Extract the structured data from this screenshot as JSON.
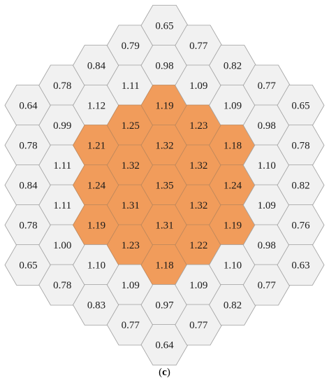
{
  "hot_color": "#f19c5b",
  "base_color": "#f1f1f1",
  "caption": {
    "open": "(",
    "letter": "c",
    "close": ")"
  },
  "columns": [
    {
      "col": -5,
      "cells": [
        [
          "0.64",
          false
        ],
        [
          "0.78",
          false
        ],
        [
          "0.84",
          false
        ],
        [
          "0.78",
          false
        ],
        [
          "0.65",
          false
        ]
      ]
    },
    {
      "col": -4,
      "cells": [
        [
          "0.78",
          false
        ],
        [
          "0.99",
          false
        ],
        [
          "1.11",
          false
        ],
        [
          "1.11",
          false
        ],
        [
          "1.00",
          false
        ],
        [
          "0.78",
          false
        ]
      ]
    },
    {
      "col": -3,
      "cells": [
        [
          "0.84",
          false
        ],
        [
          "1.12",
          false
        ],
        [
          "1.21",
          true
        ],
        [
          "1.24",
          true
        ],
        [
          "1.19",
          true
        ],
        [
          "1.10",
          false
        ],
        [
          "0.83",
          false
        ]
      ]
    },
    {
      "col": -2,
      "cells": [
        [
          "0.79",
          false
        ],
        [
          "1.11",
          false
        ],
        [
          "1.25",
          true
        ],
        [
          "1.32",
          true
        ],
        [
          "1.31",
          true
        ],
        [
          "1.23",
          true
        ],
        [
          "1.09",
          false
        ],
        [
          "0.77",
          false
        ]
      ]
    },
    {
      "col": -1,
      "cells": [
        [
          "0.65",
          false
        ],
        [
          "0.98",
          false
        ],
        [
          "1.19",
          true
        ],
        [
          "1.32",
          true
        ],
        [
          "1.35",
          true
        ],
        [
          "1.31",
          true
        ],
        [
          "1.18",
          true
        ],
        [
          "0.97",
          false
        ],
        [
          "0.64",
          false
        ]
      ]
    },
    {
      "col": 0,
      "cells": [
        [
          "0.77",
          false
        ],
        [
          "1.09",
          false
        ],
        [
          "1.23",
          true
        ],
        [
          "1.32",
          true
        ],
        [
          "1.32",
          true
        ],
        [
          "1.22",
          true
        ],
        [
          "1.09",
          false
        ],
        [
          "0.77",
          false
        ]
      ]
    },
    {
      "col": 1,
      "cells": [
        [
          "0.82",
          false
        ],
        [
          "1.09",
          false
        ],
        [
          "1.18",
          true
        ],
        [
          "1.24",
          true
        ],
        [
          "1.19",
          true
        ],
        [
          "1.10",
          false
        ],
        [
          "0.82",
          false
        ]
      ]
    },
    {
      "col": 2,
      "cells": [
        [
          "0.77",
          false
        ],
        [
          "0.98",
          false
        ],
        [
          "1.10",
          false
        ],
        [
          "1.09",
          false
        ],
        [
          "0.98",
          false
        ],
        [
          "0.77",
          false
        ]
      ]
    },
    {
      "col": 3,
      "cells": [
        [
          "0.65",
          false
        ],
        [
          "0.78",
          false
        ],
        [
          "0.82",
          false
        ],
        [
          "0.76",
          false
        ],
        [
          "0.63",
          false
        ]
      ]
    }
  ]
}
